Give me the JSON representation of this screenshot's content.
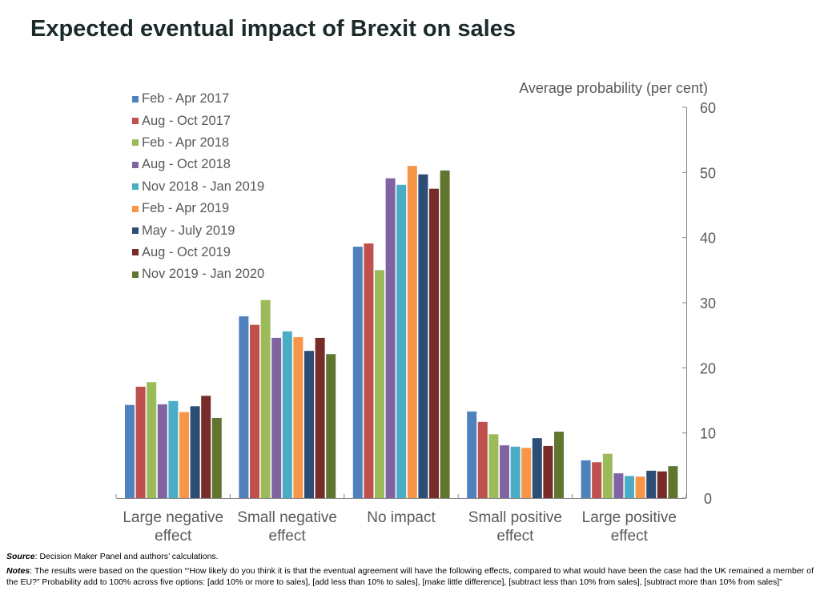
{
  "chart_data": {
    "type": "bar",
    "title": "Expected eventual impact of Brexit on sales",
    "ylabel": "Average probability (per cent)",
    "ylim": [
      0,
      60
    ],
    "yticks": [
      0,
      10,
      20,
      30,
      40,
      50,
      60
    ],
    "y_axis_side": "right",
    "grid": false,
    "legend_placement": "top-left",
    "categories": [
      "Large negative effect",
      "Small negative effect",
      "No impact",
      "Small positive effect",
      "Large positive effect"
    ],
    "series": [
      {
        "name": "Feb - Apr 2017",
        "color": "#4F81BD",
        "values": [
          14.3,
          27.9,
          38.6,
          13.3,
          5.8
        ]
      },
      {
        "name": "Aug - Oct 2017",
        "color": "#C0504D",
        "values": [
          17.1,
          26.6,
          39.1,
          11.7,
          5.5
        ]
      },
      {
        "name": "Feb - Apr 2018",
        "color": "#9BBB59",
        "values": [
          17.8,
          30.4,
          35.0,
          9.8,
          6.8
        ]
      },
      {
        "name": "Aug - Oct 2018",
        "color": "#8064A2",
        "values": [
          14.4,
          24.6,
          49.1,
          8.1,
          3.8
        ]
      },
      {
        "name": "Nov 2018 - Jan 2019",
        "color": "#4BACC6",
        "values": [
          14.9,
          25.6,
          48.1,
          7.9,
          3.4
        ]
      },
      {
        "name": "Feb - Apr 2019",
        "color": "#F79646",
        "values": [
          13.2,
          24.7,
          51.0,
          7.7,
          3.3
        ]
      },
      {
        "name": "May - July 2019",
        "color": "#2C4D75",
        "values": [
          14.1,
          22.6,
          49.7,
          9.2,
          4.2
        ]
      },
      {
        "name": "Aug - Oct 2019",
        "color": "#772C2A",
        "values": [
          15.7,
          24.6,
          47.5,
          8.0,
          4.1
        ]
      },
      {
        "name": "Nov 2019 - Jan 2020",
        "color": "#5F7530",
        "values": [
          12.3,
          22.1,
          50.3,
          10.2,
          4.9
        ]
      }
    ]
  },
  "notes": {
    "source_label": "Source",
    "source_text": ": Decision Maker Panel and authors’ calculations.",
    "notes_label": "Notes",
    "notes_text": ": The results were based on the question “‘How likely do you think it is that the eventual agreement will have the following effects, compared to what would have been the case had the UK remained a member of the EU?”  Probability add to 100% across five options: [add 10% or more to sales], [add less than 10% to sales], [make little difference], [subtract less than 10% from sales], [subtract more than 10% from sales]”"
  }
}
